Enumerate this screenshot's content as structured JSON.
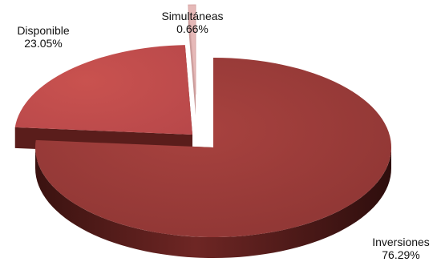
{
  "chart_data": {
    "type": "pie",
    "style": "3d-exploded",
    "slices": [
      {
        "label": "Inversiones",
        "value": 76.29,
        "value_label": "76.29%",
        "color": "#9c3d3b"
      },
      {
        "label": "Disponible",
        "value": 23.05,
        "value_label": "23.05%",
        "color": "#c0504d"
      },
      {
        "label": "Simultáneas",
        "value": 0.66,
        "value_label": "0.66%",
        "color": "#e6b9b8"
      }
    ],
    "legend": "none"
  }
}
